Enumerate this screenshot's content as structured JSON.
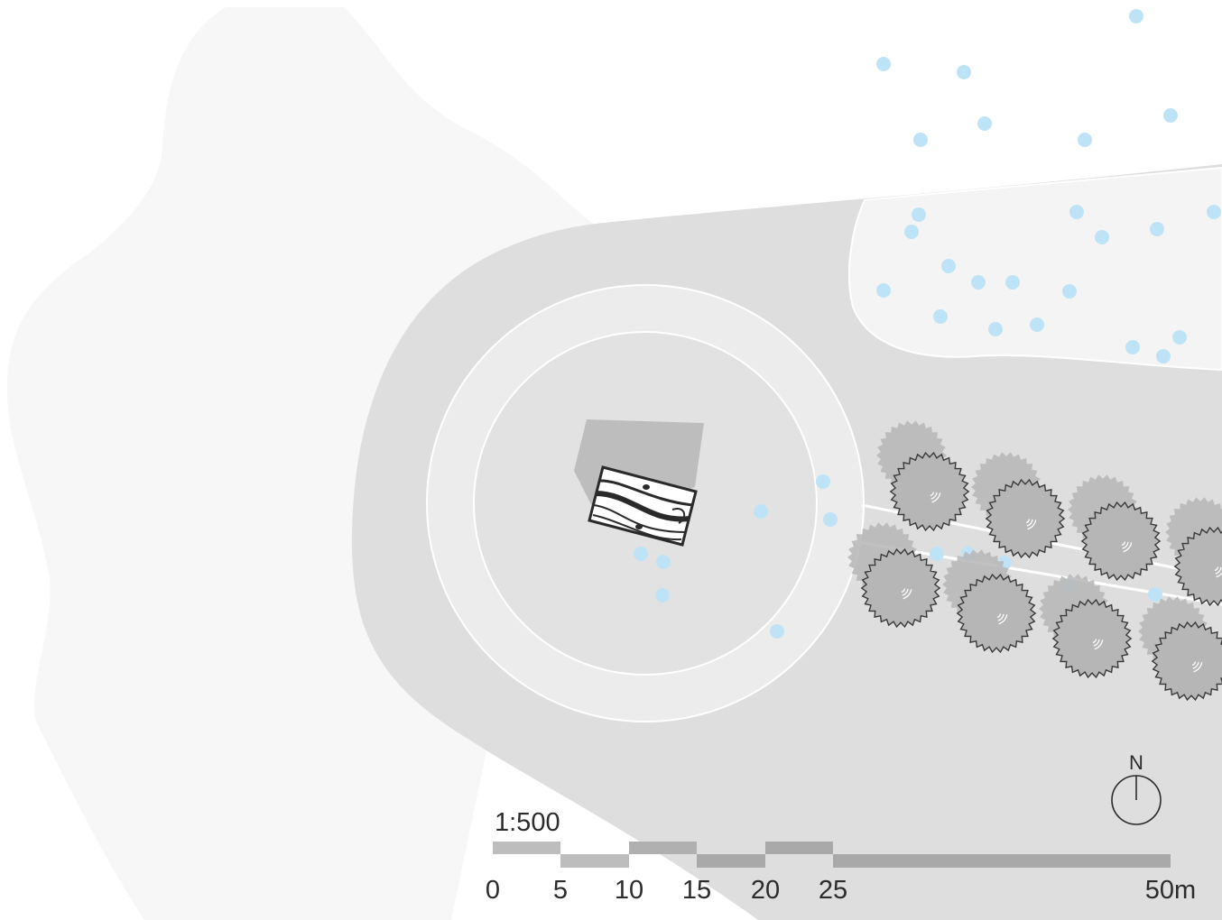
{
  "plan": {
    "scale_ratio": "1:500",
    "north_label": "N",
    "scale_ticks": [
      "0",
      "5",
      "10",
      "15",
      "20",
      "25",
      "50m"
    ],
    "colors": {
      "background": "#ffffff",
      "terrain_light": "#f7f7f7",
      "plaza": "#dedede",
      "ring": "#ececec",
      "inner_circle": "#e2e2e2",
      "building_shadow": "#bdbdbd",
      "pond_area": "#f4f4f4",
      "water_dots": "#bfe3f6",
      "tree_fill": "#b6b6b6",
      "tree_outline": "#3a3a3a",
      "scale_light": "#bdbdbd",
      "scale_dark": "#a9a9a9"
    },
    "icons": {
      "north": "north-arrow-icon",
      "tree": "tree-icon",
      "building": "building-roof-icon"
    }
  }
}
